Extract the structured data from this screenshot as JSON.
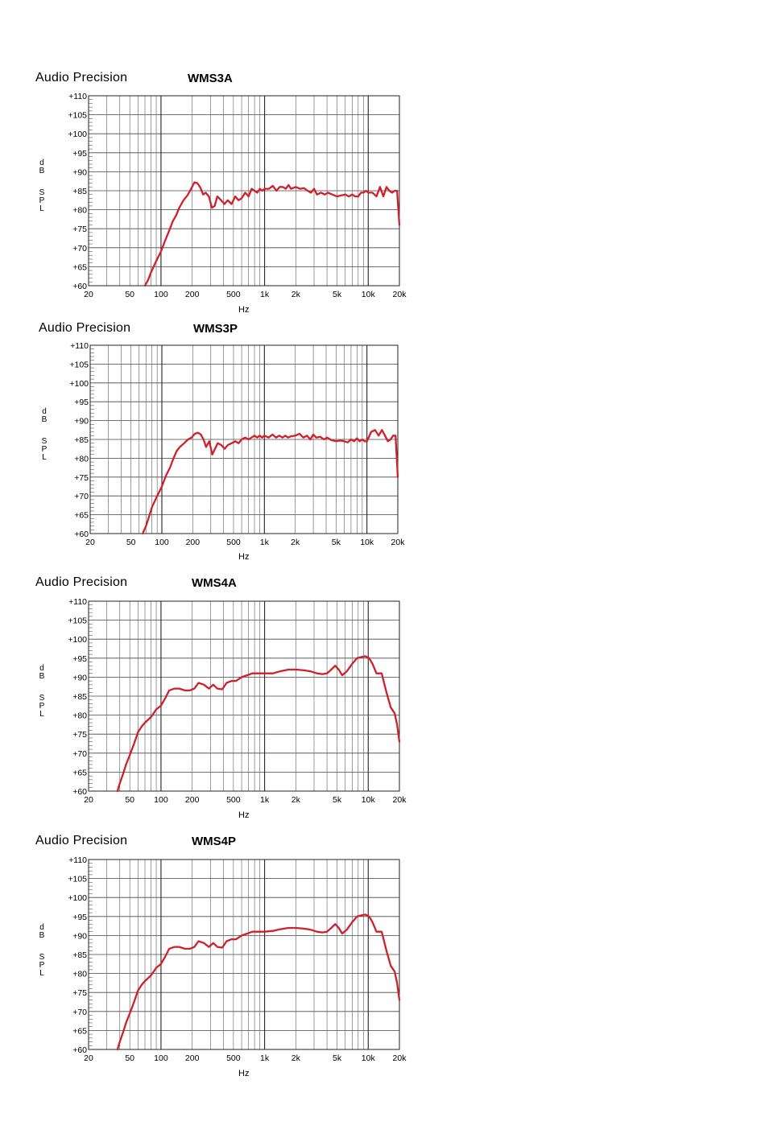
{
  "chart_data": [
    {
      "type": "line",
      "brand": "Audio Precision",
      "title": "WMS3A",
      "ylabel": [
        "d",
        "B",
        "S",
        "P",
        "L"
      ],
      "xlabel": "Hz",
      "xscale": "log",
      "xlim": [
        20,
        20000
      ],
      "ylim": [
        60,
        110
      ],
      "yticks": [
        "+110",
        "+105",
        "+100",
        "+95",
        "+90",
        "+85",
        "+80",
        "+75",
        "+70",
        "+65",
        "+60"
      ],
      "xticks": [
        {
          "v": 20,
          "t": "20"
        },
        {
          "v": 50,
          "t": "50"
        },
        {
          "v": 100,
          "t": "100"
        },
        {
          "v": 200,
          "t": "200"
        },
        {
          "v": 500,
          "t": "500"
        },
        {
          "v": 1000,
          "t": "1k"
        },
        {
          "v": 2000,
          "t": "2k"
        },
        {
          "v": 5000,
          "t": "5k"
        },
        {
          "v": 10000,
          "t": "10k"
        },
        {
          "v": 20000,
          "t": "20k"
        }
      ],
      "grid": true,
      "line_color": "#d0202a",
      "series": [
        {
          "x": [
            70,
            75,
            80,
            90,
            100,
            110,
            120,
            130,
            140,
            150,
            165,
            180,
            195,
            210,
            225,
            240,
            255,
            270,
            290,
            310,
            330,
            350,
            380,
            410,
            440,
            480,
            520,
            560,
            600,
            650,
            700,
            750,
            800,
            850,
            900,
            950,
            1000,
            1100,
            1200,
            1300,
            1400,
            1500,
            1600,
            1700,
            1800,
            2000,
            2200,
            2400,
            2600,
            2800,
            3000,
            3200,
            3500,
            3800,
            4100,
            4500,
            5000,
            5500,
            6000,
            6500,
            7000,
            7500,
            8000,
            8500,
            9000,
            9500,
            10000,
            11000,
            12000,
            13000,
            14000,
            15000,
            16000,
            17000,
            18000,
            19000,
            20000
          ],
          "y": [
            60,
            61.5,
            63.5,
            66.5,
            69,
            72,
            74.5,
            77,
            78.5,
            80.5,
            82.5,
            83.8,
            85.5,
            87.2,
            87,
            85.8,
            84,
            84.5,
            83.5,
            80.5,
            81,
            83.5,
            82.5,
            81.5,
            82.5,
            81.5,
            83.5,
            82.5,
            83,
            84.5,
            83.5,
            85.5,
            85,
            84.5,
            85.5,
            85,
            85.5,
            85.5,
            86.3,
            85,
            86,
            86,
            85.5,
            86.5,
            85.5,
            86,
            85.5,
            85.7,
            85,
            84.5,
            85.5,
            84,
            84.5,
            84,
            84.5,
            84,
            83.5,
            83.8,
            84,
            83.5,
            84,
            83.5,
            83.5,
            84.5,
            84.5,
            85,
            84.5,
            84.5,
            83.5,
            86,
            83.5,
            86,
            85,
            84.5,
            85,
            85,
            76
          ]
        }
      ]
    },
    {
      "type": "line",
      "brand": "Audio Precision",
      "title": "WMS3P",
      "ylabel": [
        "d",
        "B",
        "S",
        "P",
        "L"
      ],
      "xlabel": "Hz",
      "xscale": "log",
      "xlim": [
        20,
        20000
      ],
      "ylim": [
        60,
        110
      ],
      "yticks": [
        "+110",
        "+105",
        "+100",
        "+95",
        "+90",
        "+85",
        "+80",
        "+75",
        "+70",
        "+65",
        "+60"
      ],
      "xticks": [
        {
          "v": 20,
          "t": "20"
        },
        {
          "v": 50,
          "t": "50"
        },
        {
          "v": 100,
          "t": "100"
        },
        {
          "v": 200,
          "t": "200"
        },
        {
          "v": 500,
          "t": "500"
        },
        {
          "v": 1000,
          "t": "1k"
        },
        {
          "v": 2000,
          "t": "2k"
        },
        {
          "v": 5000,
          "t": "5k"
        },
        {
          "v": 10000,
          "t": "10k"
        },
        {
          "v": 20000,
          "t": "20k"
        }
      ],
      "grid": true,
      "line_color": "#d0202a",
      "series": [
        {
          "x": [
            65,
            70,
            75,
            80,
            90,
            100,
            110,
            120,
            130,
            140,
            150,
            165,
            180,
            195,
            210,
            225,
            240,
            255,
            270,
            290,
            310,
            330,
            350,
            380,
            410,
            440,
            480,
            520,
            560,
            600,
            650,
            700,
            750,
            800,
            850,
            900,
            950,
            1000,
            1100,
            1200,
            1300,
            1400,
            1500,
            1600,
            1700,
            1800,
            2000,
            2200,
            2400,
            2600,
            2800,
            3000,
            3200,
            3500,
            3800,
            4100,
            4500,
            5000,
            5500,
            6000,
            6500,
            7000,
            7500,
            8000,
            8500,
            9000,
            9500,
            10000,
            11000,
            12000,
            13000,
            14000,
            15000,
            16000,
            17000,
            18000,
            19000,
            20000
          ],
          "y": [
            60,
            62,
            64.5,
            67,
            70,
            72.5,
            75.5,
            77.5,
            80,
            82,
            83,
            84,
            85,
            85.5,
            86.5,
            86.8,
            86.3,
            85,
            83,
            84.5,
            81,
            82.5,
            84,
            83.5,
            82.5,
            83.5,
            84,
            84.5,
            84,
            85,
            85.5,
            85,
            85.5,
            86,
            85.5,
            86,
            85.5,
            86,
            85.5,
            86.3,
            85.5,
            86,
            85.5,
            86,
            85.5,
            85.8,
            86,
            86.5,
            85.5,
            86,
            85,
            86.3,
            85.5,
            85.7,
            85,
            85.5,
            84.8,
            84.5,
            84.7,
            84.5,
            84.2,
            85,
            84.5,
            85.3,
            84.5,
            85,
            84.5,
            84.5,
            87,
            87.5,
            86,
            87.5,
            86,
            84.5,
            85,
            86,
            86,
            75
          ]
        }
      ]
    },
    {
      "type": "line",
      "brand": "Audio Precision",
      "title": "WMS4A",
      "ylabel": [
        "d",
        "B",
        "S",
        "P",
        "L"
      ],
      "xlabel": "Hz",
      "xscale": "log",
      "xlim": [
        20,
        20000
      ],
      "ylim": [
        60,
        110
      ],
      "yticks": [
        "+110",
        "+105",
        "+100",
        "+95",
        "+90",
        "+85",
        "+80",
        "+75",
        "+70",
        "+65",
        "+60"
      ],
      "xticks": [
        {
          "v": 20,
          "t": "20"
        },
        {
          "v": 50,
          "t": "50"
        },
        {
          "v": 100,
          "t": "100"
        },
        {
          "v": 200,
          "t": "200"
        },
        {
          "v": 500,
          "t": "500"
        },
        {
          "v": 1000,
          "t": "1k"
        },
        {
          "v": 2000,
          "t": "2k"
        },
        {
          "v": 5000,
          "t": "5k"
        },
        {
          "v": 10000,
          "t": "10k"
        },
        {
          "v": 20000,
          "t": "20k"
        }
      ],
      "grid": true,
      "line_color": "#d0202a",
      "series": [
        {
          "x": [
            38,
            40,
            43,
            46,
            50,
            55,
            60,
            65,
            70,
            80,
            90,
            100,
            110,
            120,
            135,
            150,
            170,
            190,
            210,
            230,
            260,
            290,
            320,
            350,
            390,
            430,
            480,
            530,
            600,
            680,
            760,
            850,
            1000,
            1200,
            1400,
            1700,
            2000,
            2400,
            2800,
            3200,
            3600,
            4000,
            4400,
            4800,
            5200,
            5600,
            6200,
            7000,
            7800,
            8600,
            9400,
            10200,
            11000,
            12000,
            13500,
            15000,
            16500,
            18000,
            19000,
            20000
          ],
          "y": [
            60,
            62,
            64.5,
            67,
            69.5,
            72.5,
            75.5,
            77,
            78,
            79.5,
            81.5,
            82.5,
            84.5,
            86.5,
            87,
            87,
            86.5,
            86.5,
            87,
            88.5,
            88,
            87,
            88,
            87,
            86.8,
            88.5,
            89,
            89,
            90,
            90.5,
            91,
            91,
            91,
            91,
            91.5,
            92,
            92,
            91.8,
            91.5,
            91,
            90.8,
            91,
            92,
            93,
            92,
            90.5,
            91.5,
            93.5,
            95,
            95.3,
            95.5,
            95,
            93.5,
            91,
            91,
            86,
            82,
            80.5,
            77.5,
            73
          ]
        }
      ]
    },
    {
      "type": "line",
      "brand": "Audio Precision",
      "title": "WMS4P",
      "ylabel": [
        "d",
        "B",
        "S",
        "P",
        "L"
      ],
      "xlabel": "Hz",
      "xscale": "log",
      "xlim": [
        20,
        20000
      ],
      "ylim": [
        60,
        110
      ],
      "yticks": [
        "+110",
        "+105",
        "+100",
        "+95",
        "+90",
        "+85",
        "+80",
        "+75",
        "+70",
        "+65",
        "+60"
      ],
      "xticks": [
        {
          "v": 20,
          "t": "20"
        },
        {
          "v": 50,
          "t": "50"
        },
        {
          "v": 100,
          "t": "100"
        },
        {
          "v": 200,
          "t": "200"
        },
        {
          "v": 500,
          "t": "500"
        },
        {
          "v": 1000,
          "t": "1k"
        },
        {
          "v": 2000,
          "t": "2k"
        },
        {
          "v": 5000,
          "t": "5k"
        },
        {
          "v": 10000,
          "t": "10k"
        },
        {
          "v": 20000,
          "t": "20k"
        }
      ],
      "grid": true,
      "line_color": "#d0202a",
      "series": [
        {
          "x": [
            38,
            40,
            43,
            46,
            50,
            55,
            60,
            65,
            70,
            80,
            90,
            100,
            110,
            120,
            135,
            150,
            170,
            190,
            210,
            230,
            260,
            290,
            320,
            350,
            390,
            430,
            480,
            530,
            600,
            680,
            760,
            850,
            1000,
            1200,
            1400,
            1700,
            2000,
            2400,
            2800,
            3200,
            3600,
            4000,
            4400,
            4800,
            5200,
            5600,
            6200,
            7000,
            7800,
            8600,
            9400,
            10200,
            11000,
            12000,
            13500,
            15000,
            16500,
            18000,
            19000,
            20000
          ],
          "y": [
            60,
            62,
            64.5,
            67,
            69.5,
            72.5,
            75.5,
            77,
            78,
            79.5,
            81.5,
            82.5,
            84.5,
            86.5,
            87,
            87,
            86.5,
            86.5,
            87,
            88.5,
            88,
            87,
            88,
            87,
            86.8,
            88.5,
            89,
            89,
            90,
            90.5,
            91,
            91,
            91,
            91.2,
            91.6,
            92,
            92,
            91.8,
            91.5,
            91,
            90.8,
            91,
            92,
            93,
            92,
            90.5,
            91.5,
            93.5,
            95,
            95.3,
            95.5,
            95,
            93.5,
            91,
            91,
            86,
            82,
            80.5,
            77.5,
            73
          ]
        }
      ]
    }
  ]
}
